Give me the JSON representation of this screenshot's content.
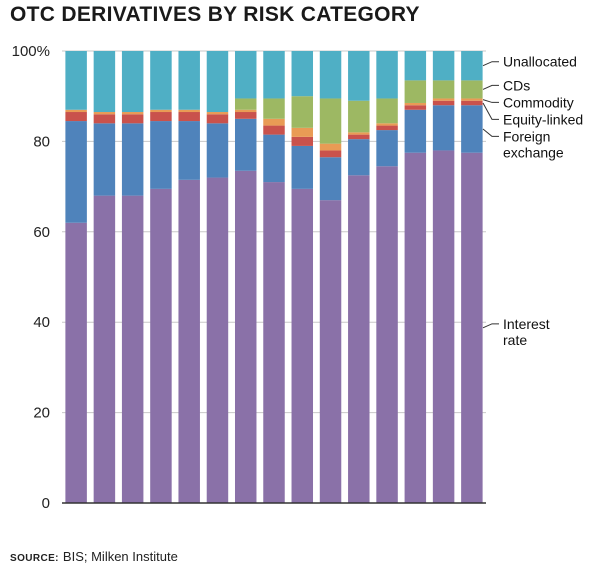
{
  "title": "OTC DERIVATIVES BY RISK CATEGORY",
  "source": {
    "label": "SOURCE:",
    "text": "BIS; Milken Institute"
  },
  "chart_data": {
    "type": "bar",
    "stacked": true,
    "title": "OTC DERIVATIVES BY RISK CATEGORY",
    "xlabel": "",
    "ylabel": "",
    "ylim": [
      0,
      100
    ],
    "yticks": [
      0,
      20,
      40,
      60,
      80,
      100
    ],
    "ytick_labels": [
      "0",
      "20",
      "40",
      "60",
      "80",
      "100%"
    ],
    "bar_count": 15,
    "legend_position": "right",
    "series": [
      {
        "name": "Interest rate",
        "label_lines": [
          "Interest",
          "rate"
        ],
        "color": "#8a71a8",
        "values": [
          62,
          68,
          68,
          69.5,
          71.5,
          72,
          73.5,
          71,
          69.5,
          67,
          72.5,
          74.5,
          77.5,
          78,
          77.5
        ]
      },
      {
        "name": "Foreign exchange",
        "label_lines": [
          "Foreign",
          "exchange"
        ],
        "color": "#4f83bb",
        "values": [
          22.5,
          16,
          16,
          15,
          13,
          12,
          11.5,
          10.5,
          9.5,
          9.5,
          8,
          8,
          9.5,
          10,
          10.5
        ]
      },
      {
        "name": "Equity-linked",
        "label_lines": [
          "Equity-linked"
        ],
        "color": "#c9524c",
        "values": [
          2,
          2,
          2,
          2,
          2,
          2,
          1.5,
          2,
          2,
          1.5,
          1,
          1,
          1,
          1,
          1
        ]
      },
      {
        "name": "Commodity",
        "label_lines": [
          "Commodity"
        ],
        "color": "#e99b55",
        "values": [
          0.5,
          0.5,
          0.5,
          0.5,
          0.5,
          0.5,
          0.5,
          1.5,
          2,
          1.5,
          0.5,
          0.5,
          0.5,
          0.5,
          0.5
        ]
      },
      {
        "name": "CDs",
        "label_lines": [
          "CDs"
        ],
        "color": "#9db863",
        "values": [
          0,
          0,
          0,
          0,
          0,
          0,
          2.5,
          4.5,
          7,
          10,
          7,
          5.5,
          5,
          4,
          4
        ]
      },
      {
        "name": "Unallocated",
        "label_lines": [
          "Unallocated"
        ],
        "color": "#4fafc5",
        "values": [
          13,
          13.5,
          13.5,
          13,
          13,
          13.5,
          10.5,
          10.5,
          10,
          10.5,
          11,
          10.5,
          6.5,
          6.5,
          6.5
        ]
      }
    ]
  }
}
